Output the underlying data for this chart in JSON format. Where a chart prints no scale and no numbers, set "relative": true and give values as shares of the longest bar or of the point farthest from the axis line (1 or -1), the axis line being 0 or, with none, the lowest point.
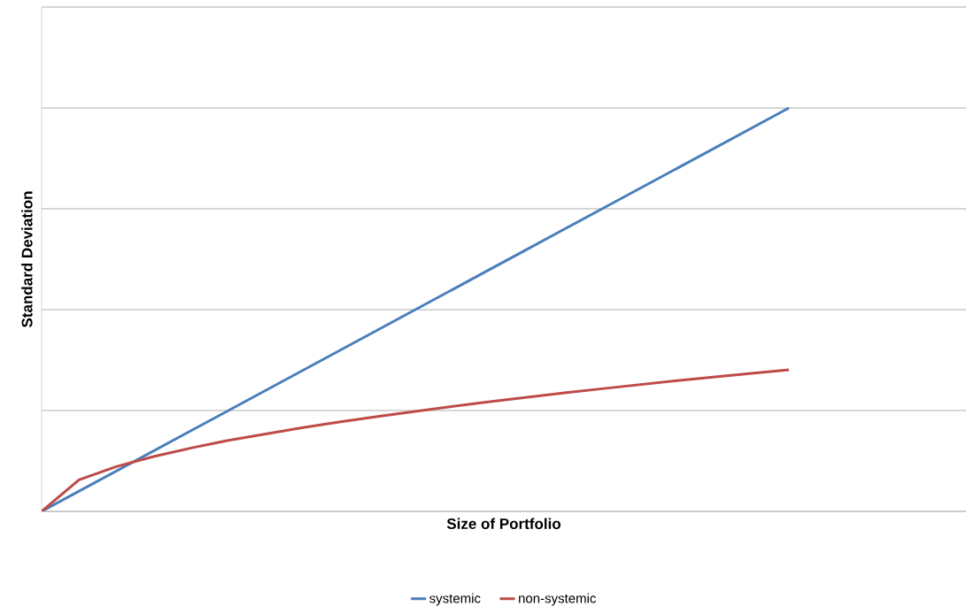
{
  "chart_data": {
    "type": "line",
    "relative": true,
    "xlabel": "Size of Portfolio",
    "ylabel": "Standard Deviation",
    "categories": [
      null,
      null,
      null,
      null,
      null,
      null,
      null,
      null,
      null,
      null,
      null,
      null,
      null,
      null,
      null,
      null,
      null,
      null,
      null,
      null,
      null
    ],
    "series": [
      {
        "name": "systemic",
        "color": "#4a7ebb",
        "values": [
          0,
          0.05,
          0.1,
          0.15,
          0.2,
          0.25,
          0.3,
          0.35,
          0.4,
          0.45,
          0.5,
          0.55,
          0.6,
          0.65,
          0.7,
          0.75,
          0.8,
          0.85,
          0.9,
          0.95,
          1
        ]
      },
      {
        "name": "non-systemic",
        "color": "#be4b48",
        "values": [
          0,
          0.078,
          0.111,
          0.136,
          0.157,
          0.176,
          0.192,
          0.208,
          0.222,
          0.235,
          0.248,
          0.26,
          0.272,
          0.283,
          0.294,
          0.304,
          0.314,
          0.324,
          0.333,
          0.342,
          0.351
        ]
      }
    ],
    "grid": "y",
    "legend": "bottom",
    "marker": "none",
    "line_style": "solid"
  }
}
